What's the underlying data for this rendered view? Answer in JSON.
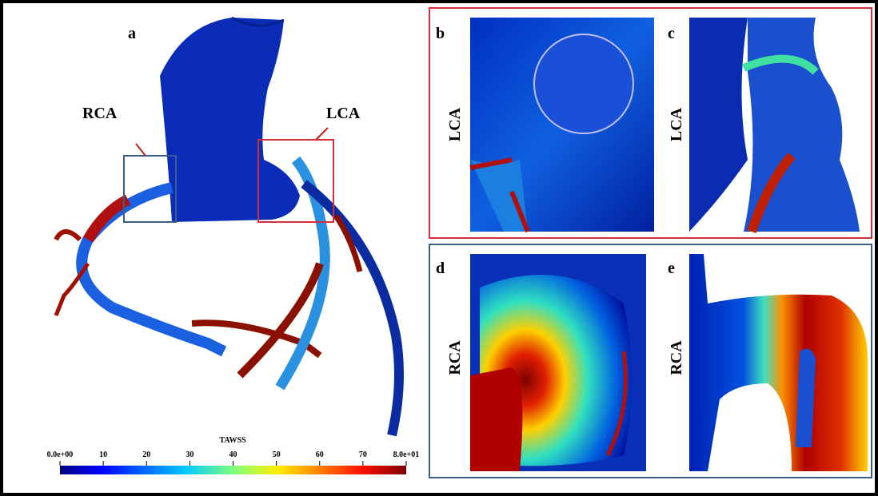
{
  "panels": [
    {
      "label": "a",
      "annotations": [
        "RCA",
        "LCA"
      ]
    },
    {
      "label": "b",
      "vessel": "LCA"
    },
    {
      "label": "c",
      "vessel": "LCA"
    },
    {
      "label": "d",
      "vessel": "RCA"
    },
    {
      "label": "e",
      "vessel": "RCA"
    }
  ],
  "colorbar": {
    "title": "TAWSS",
    "lim": [
      0,
      80
    ],
    "ticks": [
      {
        "value": 0,
        "label": "0.0e+00"
      },
      10,
      20,
      30,
      40,
      50,
      60,
      70,
      {
        "value": 80,
        "label": "8.0e+01"
      }
    ]
  }
}
